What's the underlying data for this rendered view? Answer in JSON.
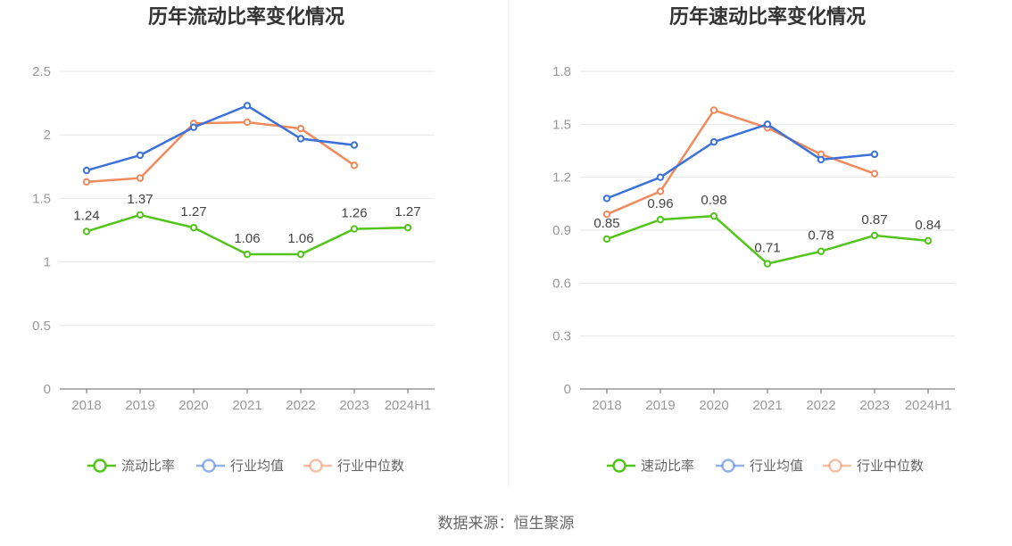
{
  "source": "数据来源：恒生聚源",
  "chart_data": [
    {
      "type": "line",
      "title": "历年流动比率变化情况",
      "categories": [
        "2018",
        "2019",
        "2020",
        "2021",
        "2022",
        "2023",
        "2024H1"
      ],
      "y_ticks": [
        "0",
        "0.5",
        "1",
        "1.5",
        "2",
        "2.5"
      ],
      "ylim": [
        0,
        2.5
      ],
      "grid": true,
      "legend_position": "bottom",
      "series": [
        {
          "name": "流动比率",
          "color": "#52c41a",
          "values": [
            1.24,
            1.37,
            1.27,
            1.06,
            1.06,
            1.26,
            1.27
          ],
          "labels": [
            "1.24",
            "1.37",
            "1.27",
            "1.06",
            "1.06",
            "1.26",
            "1.27"
          ]
        },
        {
          "name": "行业均值",
          "color": "#3a72d8",
          "values": [
            1.72,
            1.84,
            2.06,
            2.23,
            1.97,
            1.92,
            null
          ]
        },
        {
          "name": "行业中位数",
          "color": "#f08a5d",
          "values": [
            1.63,
            1.66,
            2.09,
            2.1,
            2.05,
            1.76,
            null
          ]
        }
      ]
    },
    {
      "type": "line",
      "title": "历年速动比率变化情况",
      "categories": [
        "2018",
        "2019",
        "2020",
        "2021",
        "2022",
        "2023",
        "2024H1"
      ],
      "y_ticks": [
        "0",
        "0.3",
        "0.6",
        "0.9",
        "1.2",
        "1.5",
        "1.8"
      ],
      "ylim": [
        0,
        1.8
      ],
      "grid": true,
      "legend_position": "bottom",
      "series": [
        {
          "name": "速动比率",
          "color": "#52c41a",
          "values": [
            0.85,
            0.96,
            0.98,
            0.71,
            0.78,
            0.87,
            0.84
          ],
          "labels": [
            "0.85",
            "0.96",
            "0.98",
            "0.71",
            "0.78",
            "0.87",
            "0.84"
          ]
        },
        {
          "name": "行业均值",
          "color": "#3a72d8",
          "values": [
            1.08,
            1.2,
            1.4,
            1.5,
            1.3,
            1.33,
            null
          ]
        },
        {
          "name": "行业中位数",
          "color": "#f08a5d",
          "values": [
            0.99,
            1.12,
            1.58,
            1.48,
            1.33,
            1.22,
            null
          ]
        }
      ]
    }
  ]
}
